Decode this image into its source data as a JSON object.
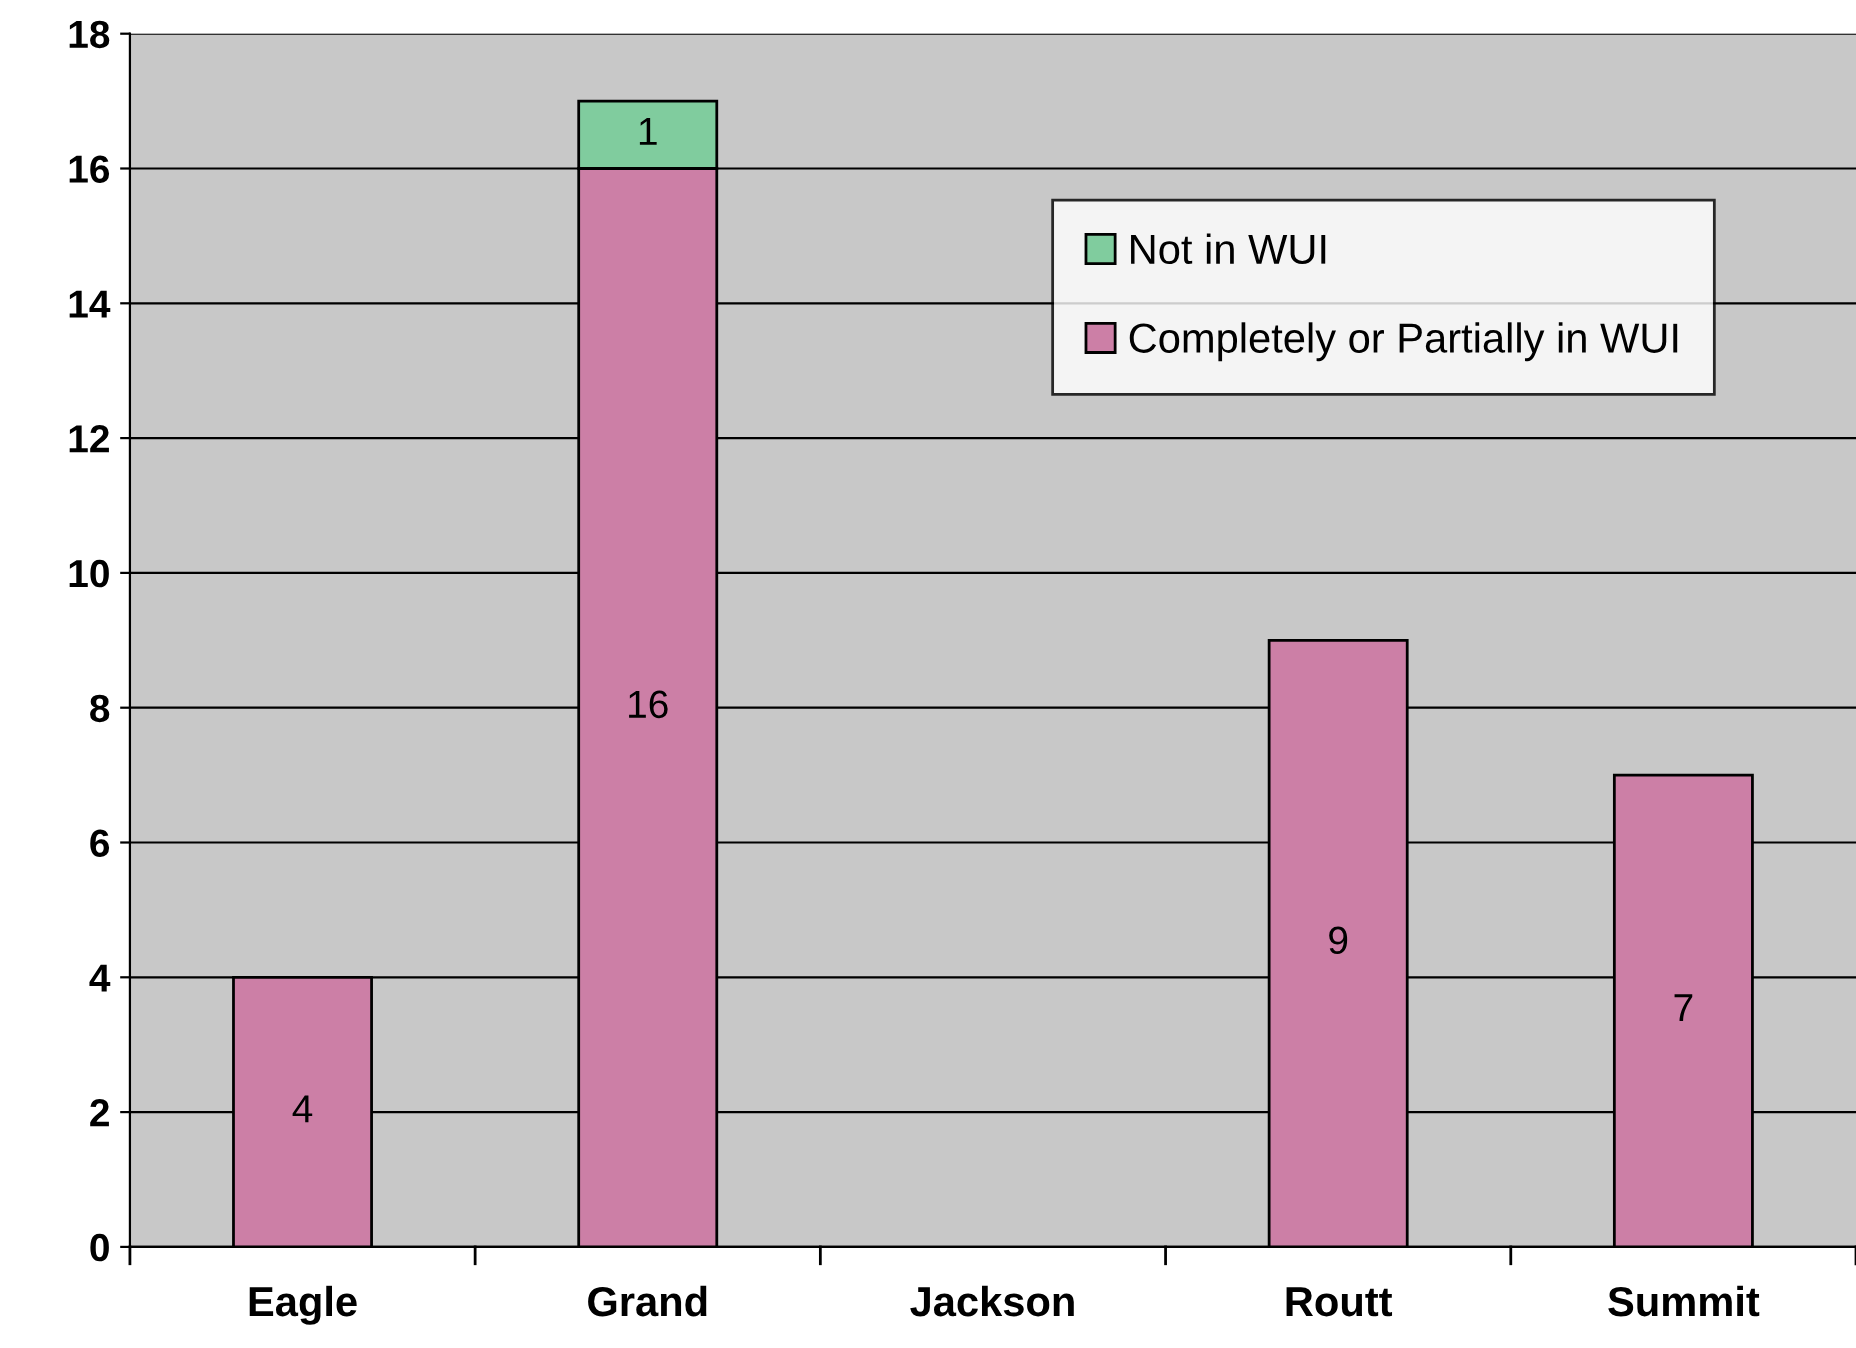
{
  "chart_data": {
    "type": "bar",
    "stacked": true,
    "categories": [
      "Eagle",
      "Grand",
      "Jackson",
      "Routt",
      "Summit"
    ],
    "series": [
      {
        "name": "Completely or Partially in WUI",
        "color": "#cc7fa6",
        "values": [
          4,
          16,
          null,
          9,
          7
        ]
      },
      {
        "name": "Not in WUI",
        "color": "#80cc9e",
        "values": [
          null,
          1,
          null,
          null,
          null
        ]
      }
    ],
    "ylim": [
      0,
      18
    ],
    "yticks": [
      0,
      2,
      4,
      6,
      8,
      10,
      12,
      14,
      16,
      18
    ],
    "grid": "y",
    "legend": "top right",
    "data_labels": true
  }
}
